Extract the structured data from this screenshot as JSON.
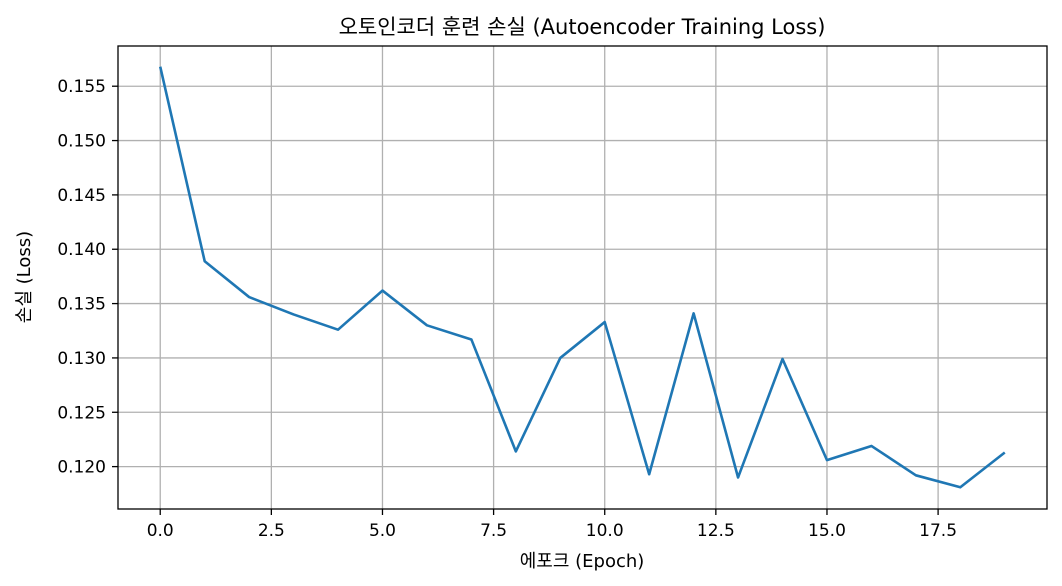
{
  "chart_data": {
    "type": "line",
    "title": "오토인코더 훈련 손실 (Autoencoder Training Loss)",
    "xlabel": "에포크 (Epoch)",
    "ylabel": "손실 (Loss)",
    "xlim": [
      -0.95,
      19.95
    ],
    "ylim": [
      0.1161,
      0.1587
    ],
    "xticks": [
      0.0,
      2.5,
      5.0,
      7.5,
      10.0,
      12.5,
      15.0,
      17.5
    ],
    "xtick_labels": [
      "0.0",
      "2.5",
      "5.0",
      "7.5",
      "10.0",
      "12.5",
      "15.0",
      "17.5"
    ],
    "yticks": [
      0.12,
      0.125,
      0.13,
      0.135,
      0.14,
      0.145,
      0.15,
      0.155
    ],
    "ytick_labels": [
      "0.120",
      "0.125",
      "0.130",
      "0.135",
      "0.140",
      "0.145",
      "0.150",
      "0.155"
    ],
    "grid": true,
    "color": "#1f77b4",
    "x": [
      0,
      1,
      2,
      3,
      4,
      5,
      6,
      7,
      8,
      9,
      10,
      11,
      12,
      13,
      14,
      15,
      16,
      17,
      18,
      19
    ],
    "y": [
      0.1568,
      0.1389,
      0.1356,
      0.134,
      0.1326,
      0.1362,
      0.133,
      0.1317,
      0.1214,
      0.13,
      0.1333,
      0.1193,
      0.1341,
      0.119,
      0.1299,
      0.1206,
      0.1219,
      0.1192,
      0.1181,
      0.1213
    ]
  }
}
